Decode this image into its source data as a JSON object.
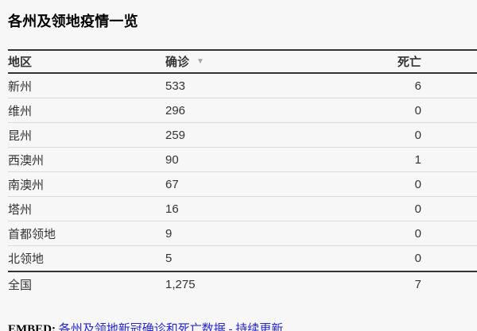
{
  "title": "各州及领地疫情一览",
  "table": {
    "columns": [
      {
        "key": "region",
        "label": "地区"
      },
      {
        "key": "confirmed",
        "label": "确诊",
        "sorted": "desc"
      },
      {
        "key": "deaths",
        "label": "死亡"
      }
    ],
    "sort_icon": "▼",
    "rows": [
      {
        "region": "新州",
        "confirmed": "533",
        "deaths": "6"
      },
      {
        "region": "维州",
        "confirmed": "296",
        "deaths": "0"
      },
      {
        "region": "昆州",
        "confirmed": "259",
        "deaths": "0"
      },
      {
        "region": "西澳州",
        "confirmed": "90",
        "deaths": "1"
      },
      {
        "region": "南澳州",
        "confirmed": "67",
        "deaths": "0"
      },
      {
        "region": "塔州",
        "confirmed": "16",
        "deaths": "0"
      },
      {
        "region": "首都领地",
        "confirmed": "9",
        "deaths": "0"
      },
      {
        "region": "北领地",
        "confirmed": "5",
        "deaths": "0"
      }
    ],
    "total_row": {
      "region": "全国",
      "confirmed": "1,275",
      "deaths": "7"
    }
  },
  "footer": {
    "embed_label": "EMBED:",
    "link_text": "各州及领地新冠确诊和死亡数据 - 持续更新"
  },
  "colors": {
    "background": "#f7f7f7",
    "heavy_rule": "#333333",
    "light_rule": "#d9d9d9",
    "text": "#333333",
    "title": "#000000",
    "sort_arrow": "#a6a6a6",
    "link": "#2526cd"
  },
  "chart_data": {
    "type": "table",
    "title": "各州及领地疫情一览",
    "columns": [
      "地区",
      "确诊",
      "死亡"
    ],
    "rows": [
      [
        "新州",
        533,
        6
      ],
      [
        "维州",
        296,
        0
      ],
      [
        "昆州",
        259,
        0
      ],
      [
        "西澳州",
        90,
        1
      ],
      [
        "南澳州",
        67,
        0
      ],
      [
        "塔州",
        16,
        0
      ],
      [
        "首都领地",
        9,
        0
      ],
      [
        "北领地",
        5,
        0
      ]
    ],
    "total": [
      "全国",
      1275,
      7
    ],
    "sorted_by": "确诊",
    "sort_direction": "descending"
  }
}
